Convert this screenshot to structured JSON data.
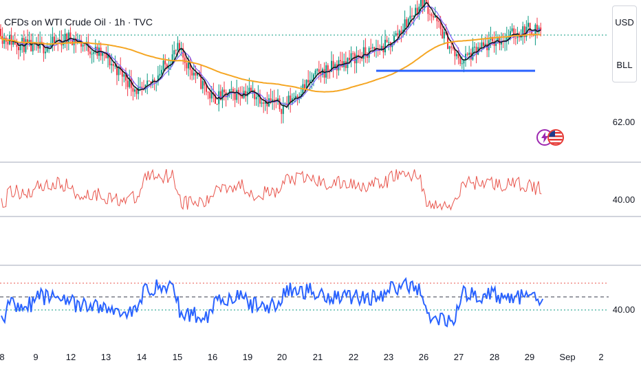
{
  "header": {
    "title": "CFDs on WTI Crude Oil · 1h · TVC"
  },
  "scale_box": {
    "currency": "USD",
    "unit": "BLL"
  },
  "icons": [
    "lightning-icon",
    "us-flag-icon"
  ],
  "colors": {
    "up": "#089981",
    "down": "#f23645",
    "ma_long": "#f5a623",
    "ma_short": "#131722",
    "ma_mid": "#7b61ff",
    "support": "#2962ff",
    "rsi_red": "#e8534a",
    "rsi_blue": "#2962ff"
  },
  "chart_data": [
    {
      "type": "candlestick",
      "title": "CFDs on WTI Crude Oil · 1h · TVC",
      "x_tick_labels": [
        "8",
        "9",
        "12",
        "13",
        "14",
        "15",
        "16",
        "19",
        "20",
        "21",
        "22",
        "23",
        "26",
        "27",
        "28",
        "29",
        "Sep",
        "2"
      ],
      "y_tick_labels": [
        "62.00"
      ],
      "approx_close_path": [
        {
          "day": "8",
          "close": 63.8
        },
        {
          "day": "9",
          "close": 63.5
        },
        {
          "day": "12",
          "close": 63.8
        },
        {
          "day": "13",
          "close": 63.3
        },
        {
          "day": "14",
          "close": 62.4
        },
        {
          "day": "15",
          "close": 63.5
        },
        {
          "day": "16",
          "close": 62.3
        },
        {
          "day": "19",
          "close": 62.5
        },
        {
          "day": "20",
          "close": 62.1
        },
        {
          "day": "21",
          "close": 62.9
        },
        {
          "day": "22",
          "close": 63.3
        },
        {
          "day": "23",
          "close": 63.6
        },
        {
          "day": "26",
          "close": 64.7
        },
        {
          "day": "27",
          "close": 63.2
        },
        {
          "day": "28",
          "close": 63.7
        },
        {
          "day": "29",
          "close": 64.0
        }
      ],
      "series": [
        {
          "name": "",
          "kind": "moving average (orange)"
        },
        {
          "name": "",
          "kind": "moving average (dark)"
        },
        {
          "name": "",
          "kind": "support line (blue)"
        }
      ]
    },
    {
      "type": "line",
      "panel": "oscillator 1",
      "y_tick_labels": [
        "40.00"
      ],
      "series": [
        {
          "name": "",
          "color": "#e8534a"
        }
      ]
    },
    {
      "type": "line",
      "panel": "oscillator 2",
      "y_tick_labels": [
        "40.00"
      ],
      "reference_levels": [
        "upper (red dotted)",
        "middle (grey dashed)",
        "lower (green dotted)"
      ],
      "series": [
        {
          "name": "",
          "color": "#2962ff"
        }
      ]
    }
  ]
}
